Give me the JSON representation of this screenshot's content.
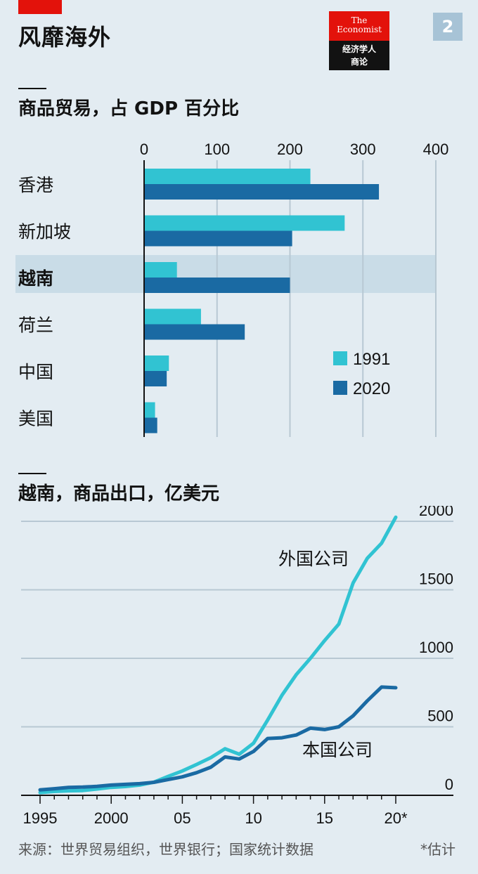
{
  "header": {
    "title": "风靡海外",
    "badge": "2",
    "logo_line1": "The",
    "logo_line2": "Economist",
    "logo_line3": "经济学人",
    "logo_line4": "商论"
  },
  "colors": {
    "series_1991": "#31c3d2",
    "series_2020": "#1a6aa3",
    "highlight": "#c9dce7",
    "brand_red": "#e3120b",
    "foreign": "#31c3d2",
    "domestic": "#1a6aa3"
  },
  "chart_data": [
    {
      "type": "bar",
      "orientation": "horizontal",
      "title": "商品贸易，占 GDP 百分比",
      "categories": [
        "香港",
        "新加坡",
        "越南",
        "荷兰",
        "中国",
        "美国"
      ],
      "highlight_category": "越南",
      "series": [
        {
          "name": "1991",
          "values": [
            228,
            275,
            45,
            78,
            34,
            15
          ]
        },
        {
          "name": "2020",
          "values": [
            322,
            203,
            200,
            138,
            31,
            18
          ]
        }
      ],
      "xlim": [
        0,
        400
      ],
      "xticks": [
        "0",
        "100",
        "200",
        "300",
        "400"
      ],
      "xtick_values": [
        0,
        100,
        200,
        300,
        400
      ],
      "grid": true,
      "legend_position": "bottom-right"
    },
    {
      "type": "line",
      "title": "越南，商品出口，亿美元",
      "x": [
        1995,
        1996,
        1997,
        1998,
        1999,
        2000,
        2001,
        2002,
        2003,
        2004,
        2005,
        2006,
        2007,
        2008,
        2009,
        2010,
        2011,
        2012,
        2013,
        2014,
        2015,
        2016,
        2017,
        2018,
        2019,
        2020
      ],
      "series": [
        {
          "name": "外国公司",
          "values": [
            20,
            28,
            33,
            35,
            46,
            58,
            64,
            75,
            96,
            138,
            178,
            225,
            275,
            340,
            300,
            380,
            550,
            730,
            880,
            1000,
            1130,
            1250,
            1550,
            1730,
            1840,
            2030
          ]
        },
        {
          "name": "本国公司",
          "values": [
            40,
            48,
            58,
            60,
            65,
            75,
            80,
            85,
            95,
            115,
            135,
            165,
            205,
            280,
            265,
            320,
            415,
            420,
            440,
            490,
            480,
            500,
            580,
            690,
            790,
            785
          ]
        }
      ],
      "ylim": [
        0,
        2000
      ],
      "yticks": [
        "0",
        "500",
        "1000",
        "1500",
        "2000"
      ],
      "ytick_values": [
        0,
        500,
        1000,
        1500,
        2000
      ],
      "xticks": [
        "1995",
        "2000",
        "05",
        "10",
        "15",
        "20*"
      ],
      "xtick_values": [
        1995,
        2000,
        2005,
        2010,
        2015,
        2020
      ],
      "grid": true
    }
  ],
  "footer": {
    "source": "来源：世界贸易组织，世界银行；国家统计数据",
    "note": "*估计"
  }
}
